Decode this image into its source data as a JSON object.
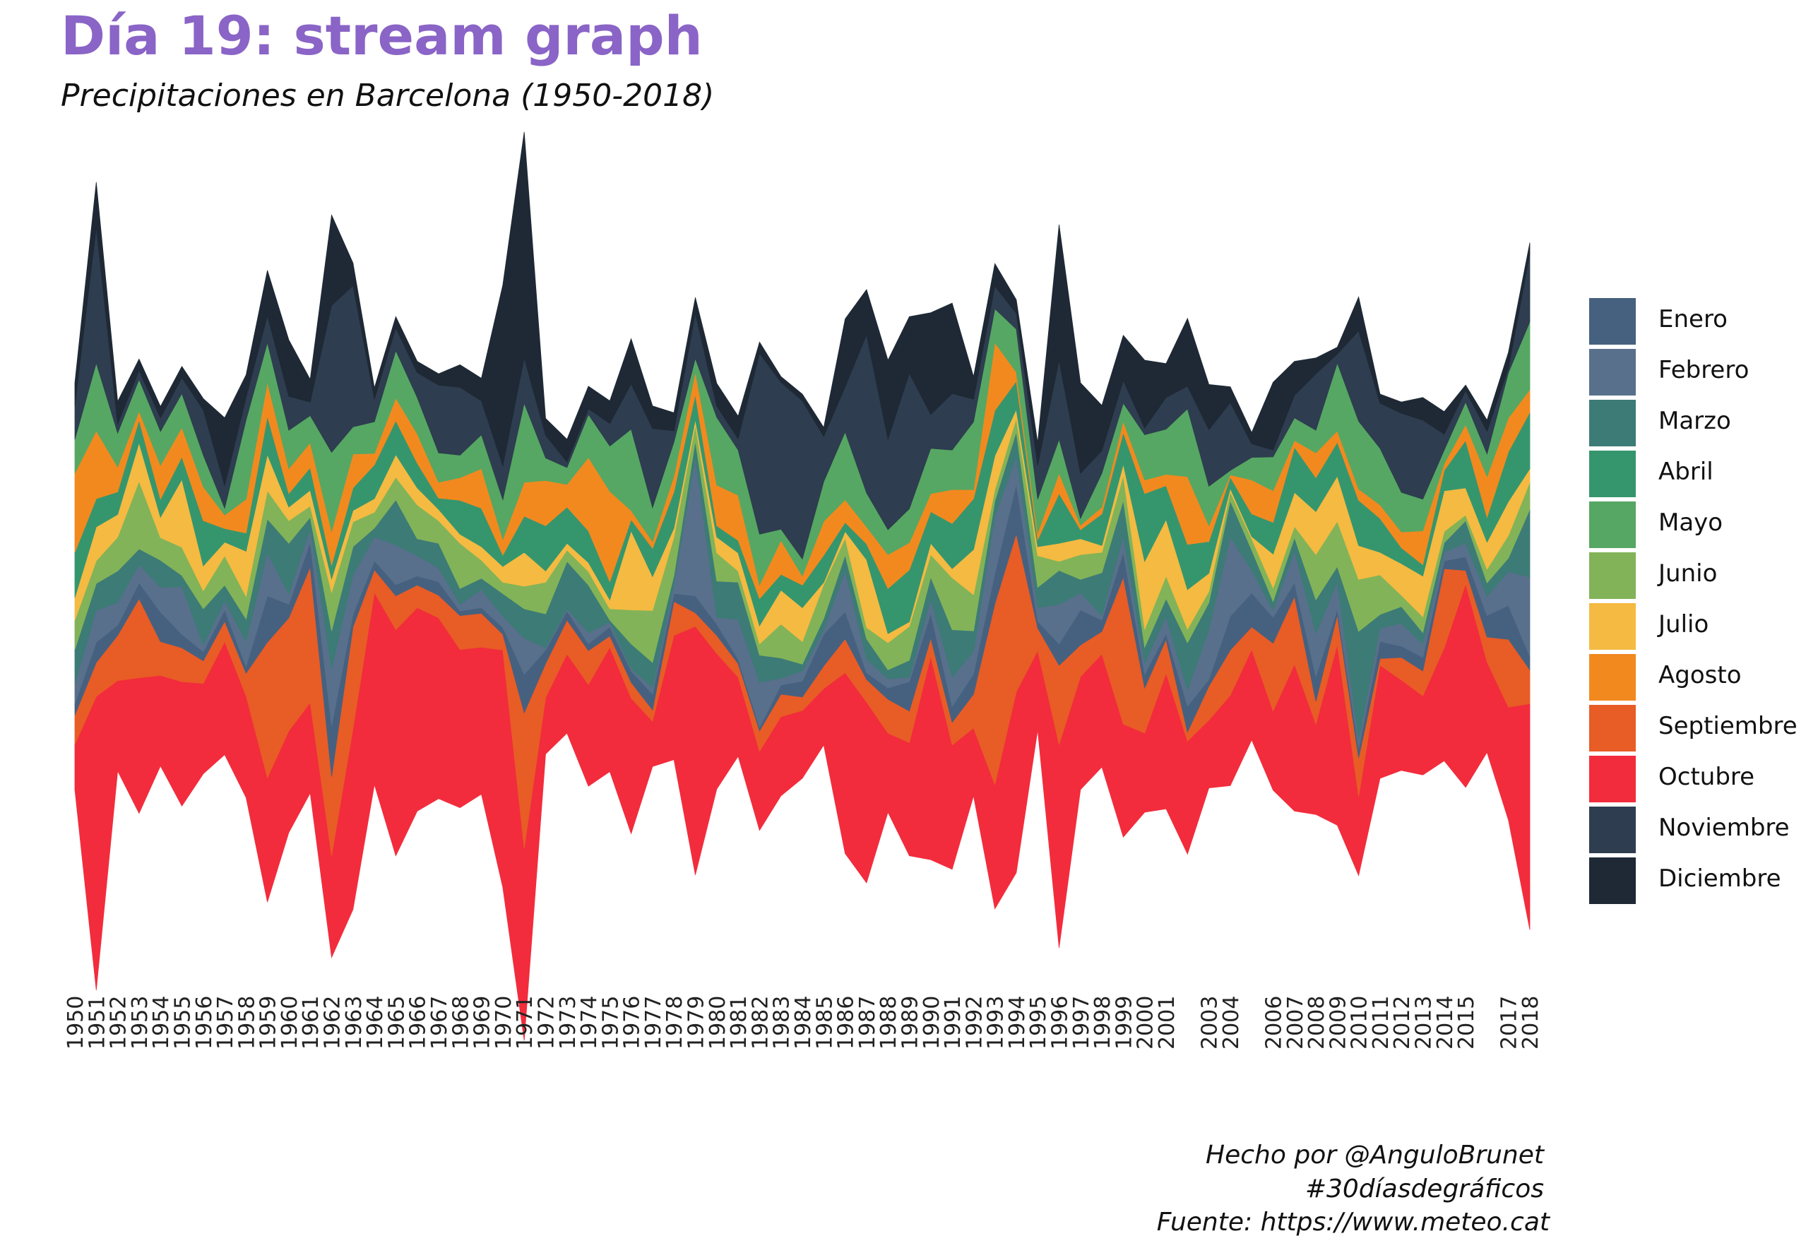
{
  "title": "Día 19: stream graph",
  "subtitle": "Precipitaciones en Barcelona (1950-2018)",
  "caption": {
    "line1": "Hecho por @AnguloBrunet",
    "line2": "#30díasdegráficos",
    "line3": "Fuente: https://www.meteo.cat"
  },
  "chart_data": {
    "type": "area",
    "stacking": "stream (centered stacked area)",
    "x": [
      1950,
      1951,
      1952,
      1953,
      1954,
      1955,
      1956,
      1957,
      1958,
      1959,
      1960,
      1961,
      1962,
      1963,
      1964,
      1965,
      1966,
      1967,
      1968,
      1969,
      1970,
      1971,
      1972,
      1973,
      1974,
      1975,
      1976,
      1977,
      1978,
      1979,
      1980,
      1981,
      1982,
      1983,
      1984,
      1985,
      1986,
      1987,
      1988,
      1989,
      1990,
      1991,
      1992,
      1993,
      1994,
      1995,
      1996,
      1997,
      1998,
      1999,
      2000,
      2001,
      2002,
      2003,
      2004,
      2005,
      2006,
      2007,
      2008,
      2009,
      2010,
      2011,
      2012,
      2013,
      2014,
      2015,
      2016,
      2017,
      2018
    ],
    "x_tick_labels": [
      "1950",
      "1951",
      "1952",
      "1953",
      "1954",
      "1955",
      "1956",
      "1957",
      "1958",
      "1959",
      "1960",
      "1961",
      "1962",
      "1963",
      "1964",
      "1965",
      "1966",
      "1967",
      "1968",
      "1969",
      "1970",
      "1971",
      "1972",
      "1973",
      "1974",
      "1975",
      "1976",
      "1977",
      "1978",
      "1979",
      "1980",
      "1981",
      "1982",
      "1983",
      "1984",
      "1985",
      "1986",
      "1987",
      "1988",
      "1989",
      "1990",
      "1991",
      "1992",
      "1993",
      "1994",
      "1995",
      "1996",
      "1997",
      "1998",
      "1999",
      "2000",
      "2001",
      "2003",
      "2004",
      "2006",
      "2007",
      "2008",
      "2009",
      "2010",
      "2011",
      "2012",
      "2013",
      "2014",
      "2015",
      "2017",
      "2018"
    ],
    "axis_y": "hidden",
    "grid": false,
    "legend_position": "right",
    "series": [
      {
        "name": "Enero",
        "color": "#46617f",
        "values": [
          10,
          18,
          9,
          14,
          26,
          12,
          8,
          10,
          6,
          41,
          12,
          22,
          45,
          11,
          8,
          10,
          8,
          12,
          4,
          5,
          6,
          34,
          12,
          8,
          6,
          8,
          10,
          14,
          7,
          15,
          10,
          4,
          3,
          8,
          14,
          28,
          24,
          6,
          10,
          26,
          22,
          14,
          18,
          27,
          44,
          6,
          19,
          31,
          10,
          22,
          12,
          5,
          23,
          6,
          30,
          30,
          23,
          12,
          22,
          5,
          8,
          15,
          10,
          12,
          7,
          12,
          19,
          30,
          12
        ]
      },
      {
        "name": "Febrero",
        "color": "#58708c",
        "values": [
          18,
          28,
          20,
          16,
          22,
          42,
          6,
          8,
          22,
          38,
          9,
          12,
          50,
          35,
          21,
          35,
          18,
          12,
          6,
          16,
          10,
          32,
          2,
          2,
          10,
          4,
          2,
          6,
          8,
          122,
          6,
          35,
          40,
          6,
          9,
          4,
          36,
          12,
          8,
          4,
          12,
          26,
          20,
          50,
          24,
          12,
          35,
          15,
          4,
          14,
          10,
          15,
          14,
          44,
          70,
          20,
          6,
          28,
          38,
          24,
          9,
          12,
          20,
          12,
          8,
          12,
          17,
          30,
          70
        ]
      },
      {
        "name": "Marzo",
        "color": "#3d7b76",
        "values": [
          30,
          24,
          28,
          14,
          24,
          10,
          32,
          14,
          20,
          30,
          45,
          10,
          34,
          25,
          8,
          40,
          15,
          22,
          14,
          10,
          20,
          26,
          30,
          42,
          42,
          2,
          22,
          22,
          8,
          15,
          32,
          33,
          24,
          18,
          6,
          10,
          14,
          18,
          8,
          15,
          20,
          42,
          18,
          14,
          22,
          18,
          30,
          12,
          38,
          32,
          14,
          16,
          42,
          24,
          32,
          18,
          8,
          12,
          30,
          14,
          95,
          12,
          15,
          10,
          8,
          20,
          12,
          12,
          60
        ]
      },
      {
        "name": "Abril",
        "color": "#35966e",
        "values": [
          40,
          25,
          20,
          20,
          16,
          20,
          40,
          12,
          16,
          34,
          12,
          20,
          12,
          20,
          30,
          30,
          22,
          10,
          30,
          34,
          10,
          32,
          40,
          32,
          28,
          16,
          10,
          25,
          32,
          22,
          10,
          11,
          24,
          14,
          20,
          24,
          8,
          14,
          40,
          46,
          28,
          40,
          45,
          40,
          25,
          6,
          44,
          8,
          28,
          28,
          60,
          30,
          40,
          28,
          10,
          20,
          28,
          40,
          30,
          30,
          40,
          30,
          14,
          10,
          18,
          42,
          22,
          44,
          50
        ]
      },
      {
        "name": "Mayo",
        "color": "#56a763",
        "values": [
          30,
          60,
          30,
          28,
          30,
          30,
          28,
          6,
          70,
          35,
          34,
          24,
          70,
          24,
          28,
          42,
          32,
          26,
          20,
          30,
          35,
          70,
          20,
          15,
          38,
          40,
          72,
          30,
          30,
          12,
          60,
          40,
          45,
          10,
          15,
          35,
          60,
          30,
          22,
          30,
          40,
          35,
          60,
          30,
          38,
          30,
          30,
          6,
          30,
          16,
          40,
          40,
          60,
          35,
          4,
          20,
          30,
          20,
          20,
          60,
          60,
          50,
          35,
          28,
          12,
          20,
          20,
          40,
          60
        ]
      },
      {
        "name": "Junio",
        "color": "#82b358",
        "values": [
          26,
          20,
          30,
          60,
          20,
          25,
          16,
          26,
          20,
          25,
          20,
          10,
          34,
          22,
          14,
          20,
          30,
          20,
          40,
          16,
          10,
          20,
          28,
          10,
          12,
          10,
          30,
          46,
          34,
          14,
          25,
          10,
          10,
          30,
          20,
          30,
          15,
          10,
          24,
          30,
          20,
          46,
          32,
          10,
          12,
          28,
          8,
          22,
          18,
          22,
          16,
          20,
          12,
          10,
          8,
          10,
          12,
          10,
          40,
          40,
          46,
          35,
          10,
          14,
          10,
          5,
          12,
          20,
          24
        ]
      },
      {
        "name": "Julio",
        "color": "#f4ba42",
        "values": [
          20,
          30,
          20,
          34,
          18,
          60,
          22,
          12,
          40,
          32,
          12,
          14,
          12,
          10,
          12,
          20,
          15,
          10,
          8,
          12,
          14,
          30,
          10,
          6,
          8,
          8,
          70,
          30,
          8,
          5,
          14,
          16,
          16,
          30,
          30,
          2,
          6,
          60,
          8,
          4,
          10,
          8,
          40,
          30,
          8,
          8,
          16,
          14,
          6,
          10,
          60,
          50,
          35,
          16,
          3,
          2,
          30,
          30,
          38,
          40,
          30,
          20,
          28,
          36,
          36,
          24,
          24,
          30,
          12
        ]
      },
      {
        "name": "Agosto",
        "color": "#f2891f",
        "values": [
          70,
          60,
          22,
          8,
          30,
          26,
          30,
          12,
          30,
          30,
          22,
          22,
          30,
          30,
          10,
          20,
          26,
          14,
          20,
          35,
          14,
          30,
          40,
          20,
          65,
          80,
          8,
          6,
          14,
          20,
          36,
          40,
          12,
          30,
          8,
          30,
          20,
          15,
          30,
          24,
          16,
          30,
          8,
          60,
          8,
          6,
          18,
          4,
          6,
          10,
          12,
          10,
          60,
          14,
          2,
          30,
          28,
          6,
          22,
          10,
          10,
          12,
          14,
          30,
          6,
          14,
          36,
          30,
          20
        ]
      },
      {
        "name": "Septiembre",
        "color": "#e85c26",
        "values": [
          26,
          30,
          40,
          70,
          30,
          30,
          20,
          18,
          20,
          120,
          100,
          120,
          70,
          90,
          20,
          30,
          20,
          20,
          30,
          30,
          14,
          120,
          30,
          30,
          30,
          10,
          14,
          10,
          30,
          12,
          16,
          12,
          18,
          20,
          12,
          20,
          30,
          20,
          30,
          28,
          16,
          20,
          30,
          160,
          140,
          20,
          70,
          28,
          20,
          130,
          40,
          30,
          8,
          30,
          40,
          20,
          60,
          60,
          20,
          26,
          34,
          6,
          20,
          22,
          70,
          12,
          22,
          60,
          30
        ]
      },
      {
        "name": "Octubre",
        "color": "#f22c3c",
        "values": [
          40,
          260,
          80,
          120,
          80,
          110,
          80,
          100,
          90,
          110,
          90,
          80,
          90,
          160,
          170,
          200,
          180,
          160,
          140,
          130,
          210,
          170,
          50,
          70,
          90,
          110,
          120,
          40,
          110,
          220,
          120,
          70,
          70,
          70,
          60,
          50,
          160,
          160,
          70,
          100,
          180,
          110,
          60,
          110,
          160,
          70,
          180,
          100,
          100,
          100,
          70,
          120,
          100,
          60,
          80,
          80,
          70,
          130,
          80,
          160,
          70,
          100,
          80,
          70,
          100,
          180,
          80,
          100,
          200
        ]
      },
      {
        "name": "Noviembre",
        "color": "#2e3d4f",
        "values": [
          30,
          120,
          8,
          8,
          12,
          14,
          40,
          20,
          20,
          24,
          30,
          12,
          130,
          125,
          20,
          20,
          22,
          60,
          60,
          30,
          30,
          40,
          20,
          5,
          5,
          20,
          40,
          70,
          10,
          40,
          10,
          10,
          160,
          130,
          140,
          40,
          40,
          140,
          80,
          120,
          30,
          50,
          20,
          20,
          14,
          30,
          70,
          40,
          20,
          20,
          6,
          28,
          20,
          50,
          60,
          12,
          6,
          20,
          50,
          8,
          80,
          40,
          70,
          70,
          14,
          10,
          20,
          4,
          60
        ]
      },
      {
        "name": "Diciembre",
        "color": "#1e2935",
        "values": [
          20,
          40,
          20,
          10,
          10,
          10,
          10,
          60,
          20,
          40,
          50,
          20,
          80,
          20,
          10,
          10,
          10,
          10,
          20,
          20,
          160,
          200,
          15,
          20,
          20,
          20,
          40,
          20,
          16,
          14,
          20,
          20,
          10,
          5,
          6,
          8,
          60,
          40,
          70,
          50,
          90,
          80,
          20,
          20,
          12,
          20,
          120,
          80,
          40,
          40,
          60,
          30,
          60,
          40,
          14,
          10,
          60,
          30,
          14,
          6,
          30,
          8,
          10,
          20,
          20,
          5,
          10,
          14,
          10
        ]
      }
    ]
  }
}
